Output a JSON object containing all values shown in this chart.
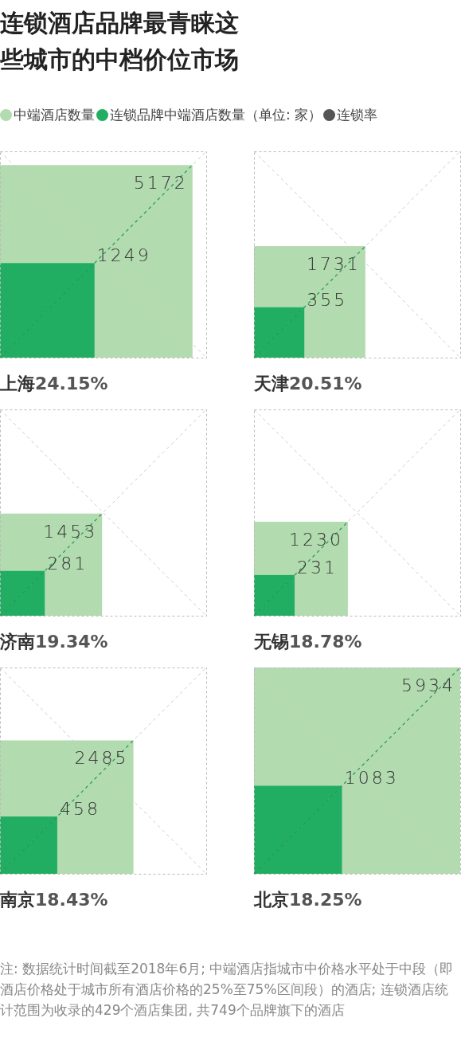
{
  "chart_data": [
    {
      "type": "other",
      "title": "连锁酒店品牌最青睐这些城市的中档价位市场",
      "legend": "top",
      "data_labels": true,
      "categories": [
        "上海"
      ],
      "series": [
        {
          "name": "中端酒店数量",
          "color": "#b3dbb0",
          "values": [
            5172
          ]
        },
        {
          "name": "连锁品牌中端酒店数量（单位: 家）",
          "color": "#22ae62",
          "values": [
            1249
          ]
        },
        {
          "name": "连锁率",
          "color": "#555555",
          "values": [
            24.15
          ],
          "value_labels": [
            "24.15%"
          ]
        }
      ]
    },
    {
      "type": "other",
      "data_labels": true,
      "categories": [
        "天津"
      ],
      "series": [
        {
          "color": "#b3dbb0",
          "values": [
            1731
          ]
        },
        {
          "color": "#22ae62",
          "values": [
            355
          ]
        },
        {
          "color": "#555555",
          "values": [
            20.51
          ],
          "value_labels": [
            "20.51%"
          ]
        }
      ]
    },
    {
      "type": "other",
      "data_labels": true,
      "categories": [
        "济南"
      ],
      "series": [
        {
          "color": "#b3dbb0",
          "values": [
            1453
          ]
        },
        {
          "color": "#22ae62",
          "values": [
            281
          ]
        },
        {
          "color": "#555555",
          "values": [
            19.34
          ],
          "value_labels": [
            "19.34%"
          ]
        }
      ]
    },
    {
      "type": "other",
      "data_labels": true,
      "categories": [
        "无锡"
      ],
      "series": [
        {
          "color": "#b3dbb0",
          "values": [
            1230
          ]
        },
        {
          "color": "#22ae62",
          "values": [
            231
          ]
        },
        {
          "color": "#555555",
          "values": [
            18.78
          ],
          "value_labels": [
            "18.78%"
          ]
        }
      ]
    },
    {
      "type": "other",
      "data_labels": true,
      "categories": [
        "南京"
      ],
      "series": [
        {
          "color": "#b3dbb0",
          "values": [
            2485
          ]
        },
        {
          "color": "#22ae62",
          "values": [
            458
          ]
        },
        {
          "color": "#555555",
          "values": [
            18.43
          ],
          "value_labels": [
            "18.43%"
          ]
        }
      ]
    },
    {
      "type": "other",
      "data_labels": true,
      "categories": [
        "北京"
      ],
      "annotations": [
        "注: 数据统计时间截至2018年6月; 中端酒店指城市中价格水平处于中段（即酒店价格处于城市所有酒店价格的25%至75%区间段）的酒店; 连锁酒店统计范围为收录的429个酒店集团, 共749个品牌旗下的酒店"
      ],
      "series": [
        {
          "color": "#b3dbb0",
          "values": [
            5934
          ]
        },
        {
          "color": "#22ae62",
          "values": [
            1083
          ]
        },
        {
          "color": "#555555",
          "values": [
            18.25
          ],
          "value_labels": [
            "18.25%"
          ]
        }
      ]
    }
  ]
}
